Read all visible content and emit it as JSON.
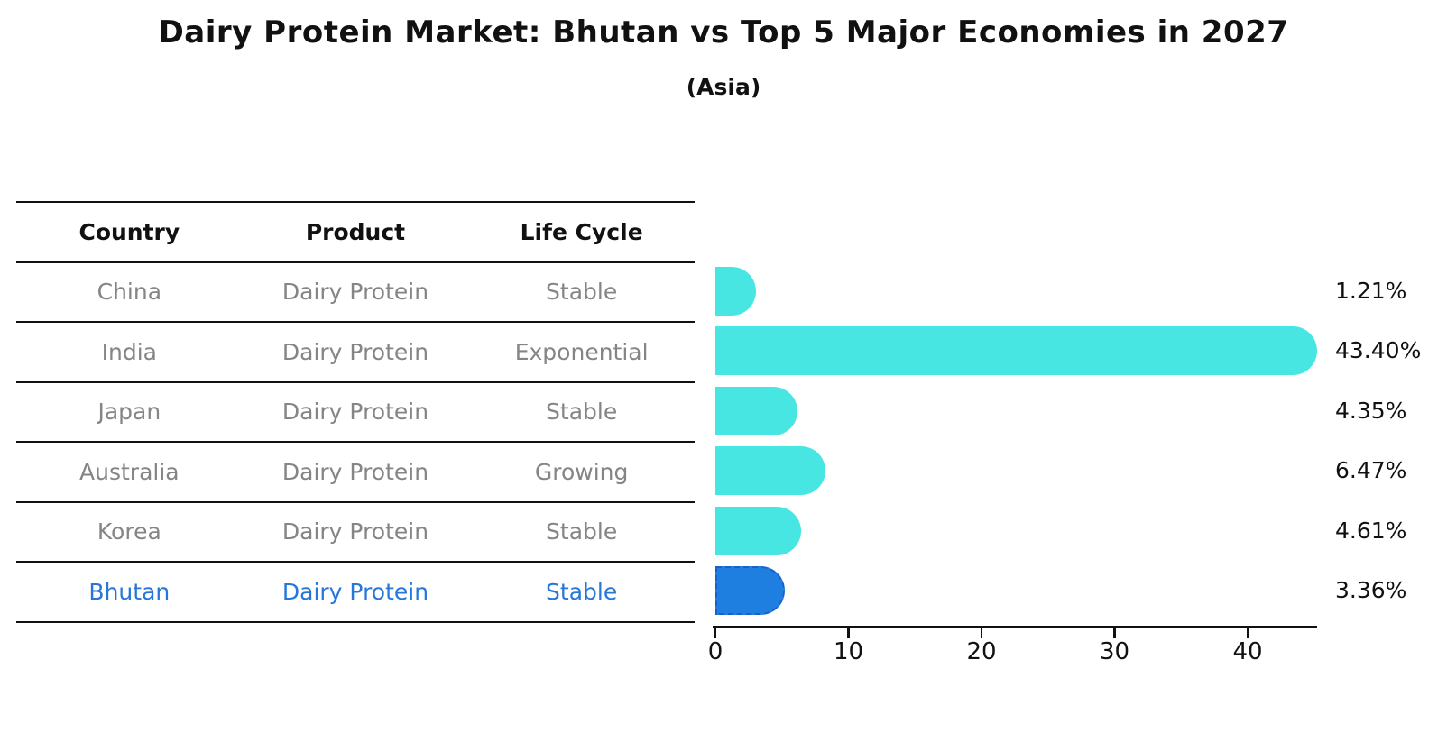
{
  "title": "Dairy Protein Market: Bhutan vs Top 5 Major Economies in 2027",
  "subtitle": "(Asia)",
  "table": {
    "headers": [
      "Country",
      "Product",
      "Life Cycle"
    ],
    "rows": [
      {
        "country": "China",
        "product": "Dairy Protein",
        "life_cycle": "Stable",
        "share_label": "1.21%",
        "highlight": false
      },
      {
        "country": "India",
        "product": "Dairy Protein",
        "life_cycle": "Exponential",
        "share_label": "43.40%",
        "highlight": false
      },
      {
        "country": "Japan",
        "product": "Dairy Protein",
        "life_cycle": "Stable",
        "share_label": "4.35%",
        "highlight": false
      },
      {
        "country": "Australia",
        "product": "Dairy Protein",
        "life_cycle": "Growing",
        "share_label": "6.47%",
        "highlight": false
      },
      {
        "country": "Korea",
        "product": "Dairy Protein",
        "life_cycle": "Stable",
        "share_label": "4.61%",
        "highlight": false
      },
      {
        "country": "Bhutan",
        "product": "Dairy Protein",
        "life_cycle": "Stable",
        "share_label": "3.36%",
        "highlight": true
      }
    ]
  },
  "chart_data": {
    "type": "bar",
    "orientation": "horizontal",
    "title": "Dairy Protein Market: Bhutan vs Top 5 Major Economies in 2027",
    "subtitle": "(Asia)",
    "categories": [
      "China",
      "India",
      "Japan",
      "Australia",
      "Korea",
      "Bhutan"
    ],
    "values": [
      1.21,
      43.4,
      4.35,
      6.47,
      4.61,
      3.36
    ],
    "value_labels": [
      "1.21%",
      "43.40%",
      "4.35%",
      "6.47%",
      "4.61%",
      "3.36%"
    ],
    "unit": "%",
    "x_ticks": [
      0,
      10,
      20,
      30,
      40
    ],
    "xlim": [
      0,
      45
    ],
    "grid": false,
    "legend": "none",
    "bar_color": "#47e6e2",
    "highlight_index": 5,
    "highlight_color": "#1e7fe0",
    "highlight_border_color": "#1a5fce",
    "row_text_color": "#858585",
    "highlight_text_color": "#2677d9"
  }
}
